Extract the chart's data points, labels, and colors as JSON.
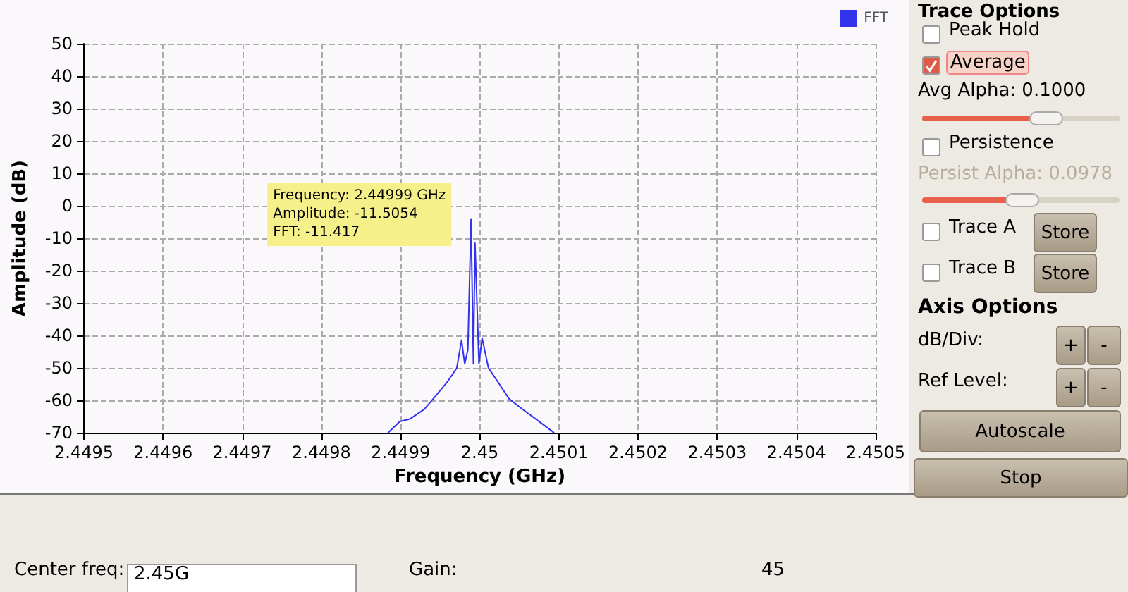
{
  "chart_data": [
    {
      "type": "line",
      "xlabel": "Frequency (GHz)",
      "ylabel": "Amplitude (dB)",
      "xlim": [
        2.4495,
        2.4505
      ],
      "ylim": [
        -70,
        50
      ],
      "xticks": [
        2.4495,
        2.4496,
        2.4497,
        2.4498,
        2.4499,
        2.45,
        2.4501,
        2.4502,
        2.4503,
        2.4504,
        2.4505
      ],
      "yticks": [
        -70,
        -60,
        -50,
        -40,
        -30,
        -20,
        -10,
        0,
        10,
        20,
        30,
        40,
        50
      ],
      "grid": true,
      "legend": "top right",
      "marker": "none",
      "series": [
        {
          "name": "FFT",
          "color": "#3333ee",
          "x": [
            2.449884,
            2.449899,
            2.449912,
            2.44993,
            2.449945,
            2.449959,
            2.449971,
            2.449977,
            2.449981,
            2.449985,
            2.449989,
            2.449992,
            2.449994,
            2.449999,
            2.450003,
            2.450011,
            2.450023,
            2.450037,
            2.450055,
            2.450075,
            2.450092,
            2.450094
          ],
          "values": [
            -70,
            -66.5,
            -65.7,
            -62.7,
            -58.4,
            -54.3,
            -50,
            -41.4,
            -48.7,
            -44.4,
            -4.2,
            -48.7,
            -11.5,
            -48.7,
            -40.8,
            -50,
            -54.3,
            -59.5,
            -62.9,
            -66.5,
            -69.6,
            -70
          ]
        }
      ],
      "annotations": [
        {
          "text": "Frequency: 2.44999 GHz\nAmplitude: -11.5054\nFFT: -11.417",
          "x": 2.44999,
          "y": -11.5
        }
      ]
    },
    {
      "type": "other",
      "annotations": [
        "Trace Options",
        "Peak Hold",
        "Average",
        "Avg Alpha: 0.1000",
        "Persistence",
        "Persist Alpha: 0.0978",
        "Trace A",
        "Store",
        "Trace B",
        "Store",
        "Axis Options",
        "dB/Div:",
        "+",
        "-",
        "Ref Level:",
        "+",
        "-",
        "Autoscale",
        "Stop",
        "Center freq:",
        "2.45G",
        "Gain:",
        "45"
      ]
    }
  ]
}
